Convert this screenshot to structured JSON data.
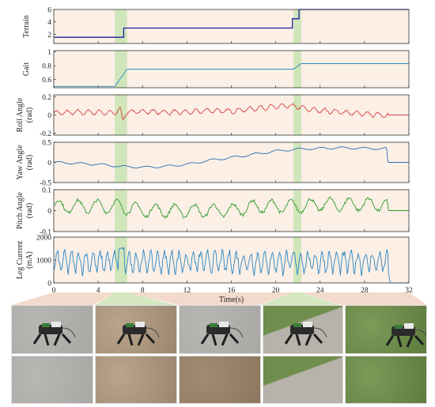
{
  "colors": {
    "panel_bg": "#fbefe6",
    "highlight": "#c9e3b2",
    "terrain_line": "#1f1f9a",
    "gait_line": "#2a8fbf",
    "roll_line": "#d94040",
    "yaw_line": "#2c6fb5",
    "pitch_line": "#2f9c2f",
    "current_line": "#2b86c5",
    "pointer_fill": "#f3d6c6",
    "pointer_green": "#cfe4b8"
  },
  "chart_data": [
    {
      "type": "line",
      "id": "terrain",
      "ylabel": "Terrain",
      "xlim": [
        0,
        32
      ],
      "ylim": [
        0.5,
        6
      ],
      "yticks": [
        "6",
        "4",
        "2"
      ],
      "ytick_values": [
        6,
        4,
        2
      ],
      "series": [
        {
          "x": [
            0,
            6.3,
            6.3,
            21.5,
            21.5,
            22.1,
            22.1,
            32
          ],
          "y": [
            1.5,
            1.5,
            3,
            3,
            4.5,
            4.5,
            6,
            6
          ]
        }
      ]
    },
    {
      "type": "line",
      "id": "gait",
      "ylabel": "Gait",
      "xlim": [
        0,
        32
      ],
      "ylim": [
        0.48,
        1.02
      ],
      "yticks": [
        "1",
        "0.8",
        "0.6"
      ],
      "ytick_values": [
        1,
        0.8,
        0.6
      ],
      "series": [
        {
          "x": [
            0,
            5.5,
            6.6,
            21.6,
            22.3,
            32
          ],
          "y": [
            0.5,
            0.5,
            0.75,
            0.75,
            0.83,
            0.83
          ]
        }
      ]
    },
    {
      "type": "line",
      "id": "roll",
      "ylabel": "Roll Angle (rad)",
      "ylabel_lines": [
        "Roll Angle",
        "(rad)"
      ],
      "xlim": [
        0,
        32
      ],
      "ylim": [
        -0.22,
        0.22
      ],
      "yticks": [
        "0.2",
        "0",
        "-0.2"
      ],
      "ytick_values": [
        0.2,
        0,
        -0.2
      ],
      "series": [
        {
          "x": [
            0,
            2,
            4,
            5.5,
            6,
            6.2,
            6.5,
            8,
            10,
            12,
            14,
            16,
            18,
            20,
            21,
            22,
            23,
            24,
            26,
            28,
            30,
            30.2,
            32
          ],
          "y": [
            0.02,
            0.03,
            0.03,
            0.02,
            0.07,
            -0.07,
            0.03,
            0.04,
            0.03,
            0.03,
            0.05,
            0.04,
            0.07,
            0.09,
            0.1,
            0.09,
            0.06,
            0.05,
            0.03,
            0.01,
            0.0,
            0.0,
            0.0
          ]
        }
      ]
    },
    {
      "type": "line",
      "id": "yaw",
      "ylabel": "Yaw Angle (rad)",
      "ylabel_lines": [
        "Yaw Angle",
        "(rad)"
      ],
      "xlim": [
        0,
        32
      ],
      "ylim": [
        -0.5,
        0.5
      ],
      "yticks": [
        "0.5",
        "0",
        "-0.5"
      ],
      "ytick_values": [
        0.5,
        0,
        -0.5
      ],
      "series": [
        {
          "x": [
            0,
            2,
            4,
            6,
            8,
            10,
            12,
            14,
            16,
            18,
            20,
            22,
            24,
            26,
            28,
            30,
            30.1,
            32
          ],
          "y": [
            0.0,
            -0.02,
            -0.05,
            -0.1,
            -0.12,
            -0.1,
            -0.05,
            0.05,
            0.12,
            0.2,
            0.28,
            0.33,
            0.35,
            0.36,
            0.35,
            0.34,
            0.0,
            0.0
          ]
        }
      ]
    },
    {
      "type": "line",
      "id": "pitch",
      "ylabel": "Pitch Angle (rad)",
      "ylabel_lines": [
        "Pitch Angle",
        "(rad)"
      ],
      "xlim": [
        0,
        32
      ],
      "ylim": [
        -0.1,
        0.1
      ],
      "yticks": [
        "0.1",
        "0",
        "-0.1"
      ],
      "ytick_values": [
        0.1,
        0,
        -0.1
      ],
      "series": [
        {
          "x": [
            0,
            2,
            4,
            6,
            8,
            10,
            12,
            14,
            16,
            18,
            20,
            22,
            24,
            26,
            28,
            30,
            30.1,
            32
          ],
          "y": [
            0.02,
            0.02,
            0.02,
            0.02,
            0.0,
            0.0,
            0.0,
            0.0,
            0.0,
            0.02,
            0.02,
            0.02,
            0.03,
            0.03,
            0.03,
            0.03,
            0.0,
            0.0
          ]
        }
      ]
    },
    {
      "type": "line",
      "id": "current",
      "ylabel": "Leg Current (mA)",
      "ylabel_lines": [
        "Leg Current",
        "(mA)"
      ],
      "xlabel": "Time(s)",
      "xlim": [
        0,
        32
      ],
      "xticks": [
        "0",
        "4",
        "8",
        "12",
        "16",
        "20",
        "24",
        "28",
        "32"
      ],
      "xtick_values": [
        0,
        4,
        8,
        12,
        16,
        20,
        24,
        28,
        32
      ],
      "ylim": [
        0,
        2000
      ],
      "yticks": [
        "2000",
        "1000",
        "0"
      ],
      "ytick_values": [
        2000,
        1000,
        0
      ],
      "series": [
        {
          "x": [
            0,
            5,
            6,
            7,
            10,
            15,
            20,
            25,
            30,
            30.3,
            32
          ],
          "y": [
            850,
            850,
            1050,
            900,
            950,
            1000,
            1000,
            1000,
            1000,
            0,
            0
          ]
        }
      ]
    }
  ],
  "highlight_bands": [
    [
      5.5,
      6.6
    ],
    [
      21.6,
      22.3
    ]
  ],
  "photos_row1": [
    "asphalt-robot",
    "dirt-robot",
    "asphalt-robot-2",
    "grass-edge-robot",
    "grass-robot"
  ],
  "photos_row2": [
    "asphalt",
    "dirt",
    "gravel-soil",
    "grass-edge",
    "grass"
  ]
}
